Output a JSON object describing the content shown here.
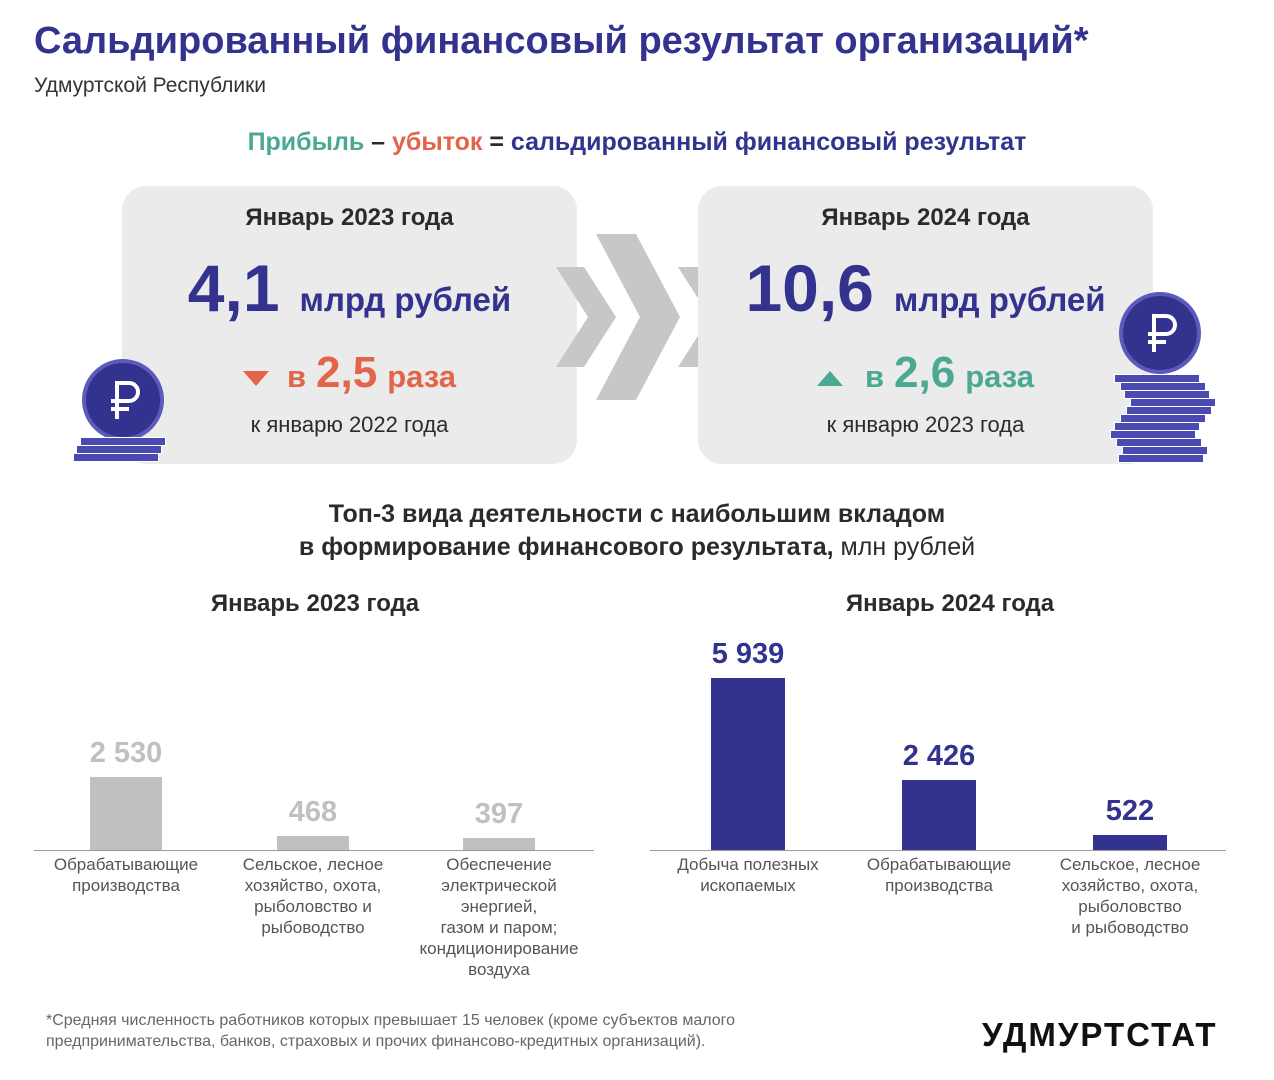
{
  "header": {
    "title": "Сальдированный финансовый результат организаций*",
    "subtitle": "Удмуртской Республики"
  },
  "formula": {
    "profit": "Прибыль",
    "minus": " – ",
    "loss": "убыток",
    "equals": " = ",
    "result": "сальдированный финансовый результат"
  },
  "cards": [
    {
      "period": "Январь 2023 года",
      "value": "4,1",
      "unit": "млрд рублей",
      "direction": "down",
      "change_prefix": "в",
      "change_value": "2,5",
      "change_suffix": "раза",
      "comparison": "к  январю 2022 года"
    },
    {
      "period": "Январь 2024 года",
      "value": "10,6",
      "unit": "млрд рублей",
      "direction": "up",
      "change_prefix": "в",
      "change_value": "2,6",
      "change_suffix": "раза",
      "comparison": "к  январю 2023 года"
    }
  ],
  "section": {
    "title_line1": "Топ-3 вида деятельности с наибольшим вкладом",
    "title_line2": "в формирование финансового результата,",
    "unit": " млн рублей"
  },
  "chart_data": [
    {
      "type": "bar",
      "title": "Январь 2023 года",
      "categories": [
        "Обрабатывающие производства",
        "Сельское, лесное хозяйство, охота, рыболовство и рыбоводство",
        "Обеспечение электрической энергией, газом и паром; кондиционирование воздуха"
      ],
      "values": [
        2530,
        468,
        397
      ],
      "labels": [
        "2 530",
        "468",
        "397"
      ],
      "color": "#c0c0c0",
      "ylim": [
        0,
        6200
      ]
    },
    {
      "type": "bar",
      "title": "Январь 2024 года",
      "categories": [
        "Добыча полезных ископаемых",
        "Обрабатывающие производства",
        "Сельское, лесное хозяйство, охота, рыболовство и рыбоводство"
      ],
      "values": [
        5939,
        2426,
        522
      ],
      "labels": [
        "5 939",
        "2 426",
        "522"
      ],
      "color": "#33338f",
      "ylim": [
        0,
        6200
      ]
    }
  ],
  "category_lines": [
    [
      [
        "Обрабатывающие",
        "производства"
      ],
      [
        "Сельское, лесное",
        "хозяйство, охота,",
        "рыболовство и",
        "рыбоводство"
      ],
      [
        "Обеспечение",
        "электрической",
        "энергией,",
        "газом и паром;",
        "кондиционирование",
        "воздуха"
      ]
    ],
    [
      [
        "Добыча полезных",
        "ископаемых"
      ],
      [
        "Обрабатывающие",
        "производства"
      ],
      [
        "Сельское, лесное",
        "хозяйство, охота,",
        "рыболовство",
        "и рыбоводство"
      ]
    ]
  ],
  "footnote": {
    "line1": "*Средняя численность работников которых превышает 15 человек (кроме субъектов малого",
    "line2": "предпринимательства, банков, страховых и прочих финансово-кредитных организаций)."
  },
  "brand": "УДМУРТСТАТ",
  "icons": {
    "coin": "ruble-coin-icon",
    "stack": "coin-stack-icon",
    "arrows": "chevron-right-icon"
  },
  "colors": {
    "navy": "#33338f",
    "profit": "#4aa893",
    "loss": "#e2644a",
    "card_bg": "#ebebeb",
    "bar_2023": "#c0c0c0",
    "bar_2024": "#33338f"
  }
}
